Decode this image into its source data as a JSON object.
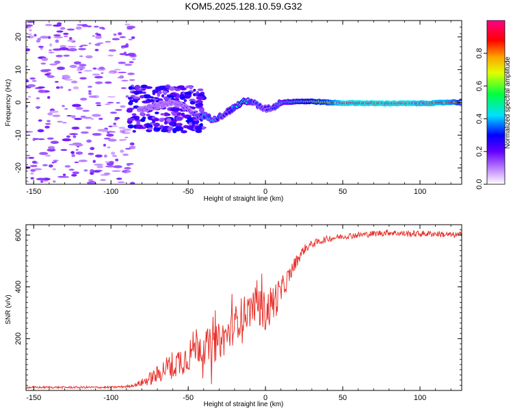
{
  "figure": {
    "title": "KOM5.2025.128.10.59.G32"
  },
  "chart_data": [
    {
      "type": "heatmap",
      "title": "KOM5.2025.128.10.59.G32",
      "xlabel": "Height of straight line (km)",
      "ylabel": "Frequency (Hz)",
      "xlim": [
        -155,
        127
      ],
      "ylim": [
        -25,
        25
      ],
      "xticks": [
        -150,
        -100,
        -50,
        0,
        50,
        100
      ],
      "yticks": [
        20,
        10,
        0,
        -10,
        -20
      ],
      "colorbar": {
        "label": "Normalized spectral amplitude",
        "range": [
          0,
          1
        ],
        "ticks": [
          0.0,
          0.2,
          0.4,
          0.6,
          0.8
        ],
        "colormap": "rainbow (white-purple-blue-cyan-green-yellow-red-magenta)"
      },
      "frequency_track": {
        "x": [
          -80,
          -70,
          -60,
          -55,
          -50,
          -45,
          -40,
          -35,
          -30,
          -25,
          -20,
          -15,
          -10,
          -5,
          0,
          5,
          10,
          20,
          30,
          40,
          50,
          60,
          70,
          80,
          90,
          100,
          110,
          120,
          127
        ],
        "freq": [
          -2,
          -1,
          0,
          -1,
          -2,
          -4,
          -4,
          -5,
          -4.5,
          -3,
          -1.5,
          0,
          0.5,
          -1,
          -2,
          -1.5,
          0,
          0.3,
          0.3,
          0,
          -0.2,
          -0.2,
          -0.3,
          -0.3,
          -0.3,
          -0.3,
          -0.2,
          0.1,
          0
        ],
        "amplitude": [
          0.15,
          0.15,
          0.15,
          0.15,
          0.2,
          0.25,
          0.35,
          0.4,
          0.35,
          0.3,
          0.4,
          0.5,
          0.4,
          0.3,
          0.25,
          0.3,
          0.4,
          0.5,
          0.7,
          0.75,
          0.95,
          0.95,
          0.95,
          0.95,
          0.95,
          0.9,
          0.9,
          0.85,
          0.7
        ]
      },
      "noise_region_x": [
        -155,
        -85
      ]
    },
    {
      "type": "line",
      "xlabel": "Height of straight line (km)",
      "ylabel": "SNR (v/v)",
      "xlim": [
        -155,
        127
      ],
      "ylim": [
        0,
        640
      ],
      "xticks": [
        -150,
        -100,
        -50,
        0,
        50,
        100
      ],
      "yticks": [
        200,
        400,
        600
      ],
      "series": [
        {
          "color": "#e8302a",
          "x": [
            -155,
            -140,
            -120,
            -100,
            -90,
            -85,
            -80,
            -75,
            -70,
            -65,
            -60,
            -55,
            -50,
            -45,
            -40,
            -35,
            -30,
            -25,
            -20,
            -15,
            -10,
            -5,
            0,
            5,
            10,
            15,
            20,
            25,
            30,
            40,
            50,
            60,
            70,
            80,
            90,
            100,
            110,
            120,
            127
          ],
          "y": [
            12,
            12,
            12,
            12,
            15,
            20,
            30,
            45,
            60,
            85,
            100,
            115,
            130,
            180,
            170,
            170,
            190,
            210,
            255,
            295,
            310,
            345,
            300,
            340,
            380,
            440,
            500,
            545,
            565,
            585,
            595,
            600,
            605,
            610,
            605,
            605,
            605,
            600,
            600
          ],
          "noise_amplitude": [
            4,
            4,
            4,
            4,
            5,
            6,
            15,
            25,
            35,
            45,
            55,
            60,
            60,
            75,
            70,
            70,
            70,
            70,
            70,
            70,
            65,
            65,
            80,
            80,
            55,
            35,
            25,
            18,
            15,
            12,
            12,
            12,
            12,
            12,
            12,
            12,
            12,
            12,
            12
          ]
        }
      ]
    }
  ]
}
